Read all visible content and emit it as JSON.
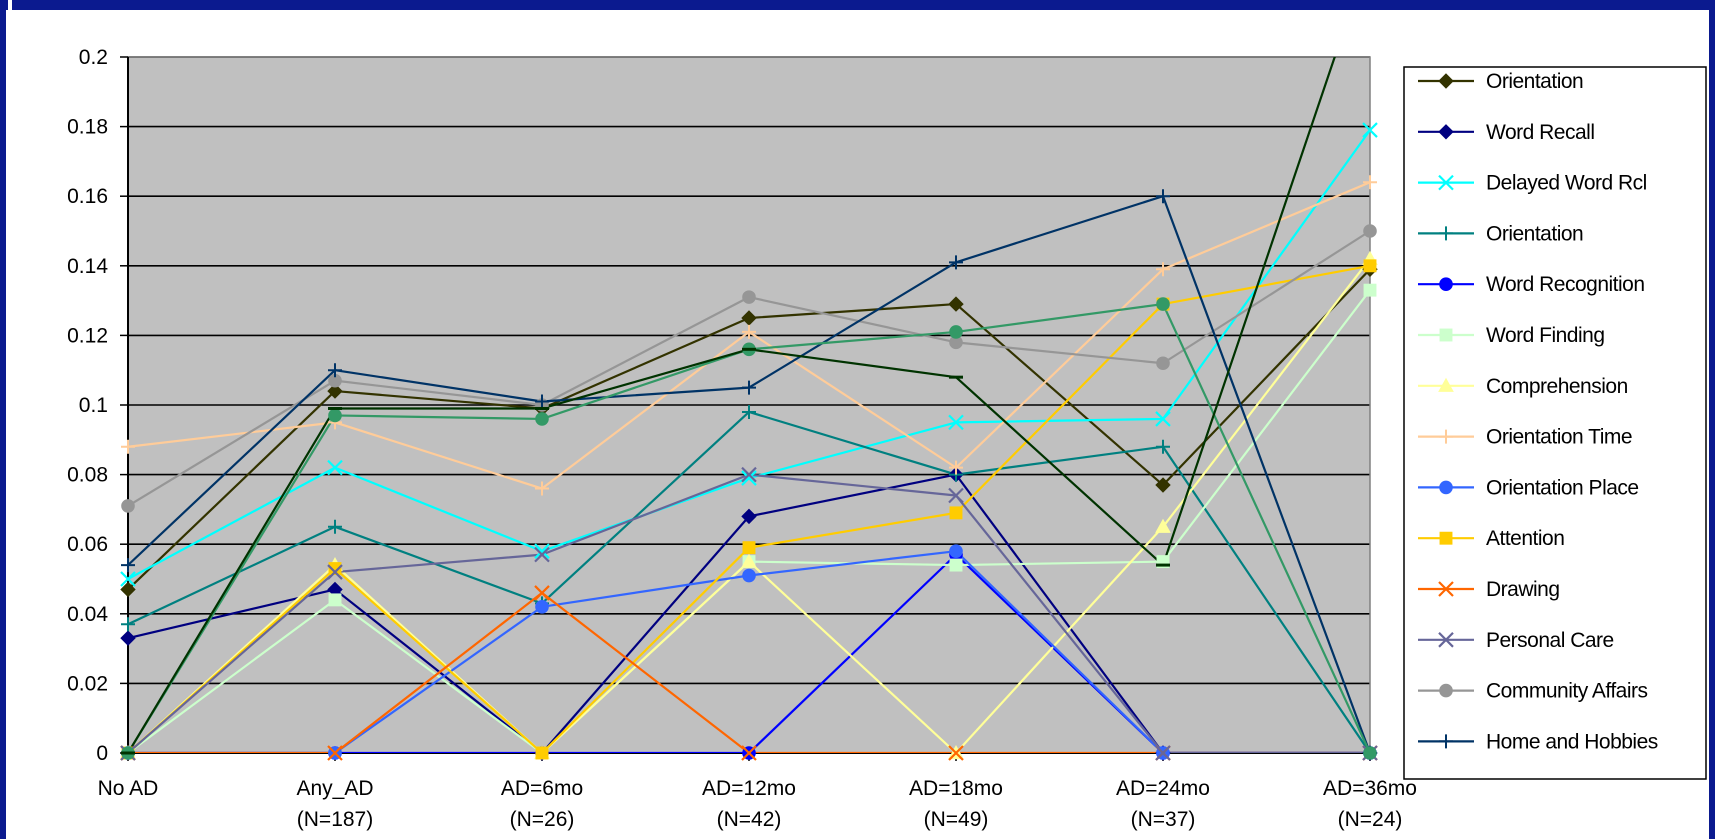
{
  "chart_data": {
    "type": "line",
    "title": "",
    "xlabel": "",
    "ylabel": "",
    "ylim": [
      0,
      0.2
    ],
    "yticks": [
      "0",
      "0.02",
      "0.04",
      "0.06",
      "0.08",
      "0.1",
      "0.12",
      "0.14",
      "0.16",
      "0.18",
      "0.2"
    ],
    "categories": [
      {
        "line1": "No AD",
        "line2": ""
      },
      {
        "line1": "Any_AD",
        "line2": "(N=187)"
      },
      {
        "line1": "AD=6mo",
        "line2": "(N=26)"
      },
      {
        "line1": "AD=12mo",
        "line2": "(N=42)"
      },
      {
        "line1": "AD=18mo",
        "line2": "(N=49)"
      },
      {
        "line1": "AD=24mo",
        "line2": "(N=37)"
      },
      {
        "line1": "AD=36mo",
        "line2": "(N=24)"
      }
    ],
    "grid": true,
    "plot_background": "#c0c0c0",
    "legend_position": "right",
    "series": [
      {
        "name": "Orientation",
        "color": "#333300",
        "marker": "diamond",
        "values": [
          0.047,
          0.104,
          0.099,
          0.125,
          0.129,
          0.077,
          0.139
        ]
      },
      {
        "name": "Word Recall",
        "color": "#000080",
        "marker": "diamond",
        "values": [
          0.033,
          0.047,
          0.0,
          0.068,
          0.08,
          0.0,
          0.0
        ]
      },
      {
        "name": "Delayed Word Rcl",
        "color": "#00ffff",
        "marker": "x",
        "values": [
          0.05,
          0.082,
          0.058,
          0.079,
          0.095,
          0.096,
          0.179
        ]
      },
      {
        "name": "Orientation",
        "color": "#008080",
        "marker": "plus",
        "values": [
          0.037,
          0.065,
          0.043,
          0.098,
          0.08,
          0.088,
          0.0
        ]
      },
      {
        "name": "Word Recognition",
        "color": "#0000ff",
        "marker": "circle",
        "values": [
          0.0,
          0.0,
          0.0,
          0.0,
          0.057,
          0.0,
          0.0
        ]
      },
      {
        "name": "Word Finding",
        "color": "#ccffcc",
        "marker": "square",
        "values": [
          0.0,
          0.044,
          0.0,
          0.055,
          0.054,
          0.055,
          0.133
        ]
      },
      {
        "name": "Comprehension",
        "color": "#ffff99",
        "marker": "triangle",
        "values": [
          0.0,
          0.054,
          0.0,
          0.055,
          0.0,
          0.065,
          0.142
        ]
      },
      {
        "name": "Orientation Time",
        "color": "#ffcc99",
        "marker": "plus",
        "values": [
          0.088,
          0.095,
          0.076,
          0.121,
          0.082,
          0.139,
          0.164
        ]
      },
      {
        "name": "Orientation Place",
        "color": "#3366ff",
        "marker": "circle",
        "values": [
          0.0,
          0.0,
          0.042,
          0.051,
          0.058,
          0.0,
          0.0
        ]
      },
      {
        "name": "Attention",
        "color": "#ffcc00",
        "marker": "square",
        "values": [
          0.0,
          0.053,
          0.0,
          0.059,
          0.069,
          0.129,
          0.14
        ]
      },
      {
        "name": "Drawing",
        "color": "#ff6600",
        "marker": "x",
        "values": [
          0.0,
          0.0,
          0.046,
          0.0,
          0.0,
          0.0,
          0.0
        ]
      },
      {
        "name": "Personal Care",
        "color": "#666699",
        "marker": "x",
        "values": [
          0.0,
          0.052,
          0.057,
          0.08,
          0.074,
          0.0,
          0.0
        ]
      },
      {
        "name": "Community Affairs",
        "color": "#969696",
        "marker": "circle",
        "values": [
          0.071,
          0.107,
          0.1,
          0.131,
          0.118,
          0.112,
          0.15
        ]
      },
      {
        "name": "Home and Hobbies",
        "color": "#003366",
        "marker": "plus",
        "values": [
          0.054,
          0.11,
          0.101,
          0.105,
          0.141,
          0.16,
          0.0
        ]
      },
      {
        "name": "",
        "color": "#339966",
        "marker": "circle",
        "values": [
          0.0,
          0.097,
          0.096,
          0.116,
          0.121,
          0.129,
          0.0
        ]
      },
      {
        "name": "",
        "color": "#003300",
        "marker": "dash",
        "values": [
          0.0,
          0.099,
          0.099,
          0.116,
          0.108,
          0.054,
          0.23
        ]
      }
    ]
  }
}
